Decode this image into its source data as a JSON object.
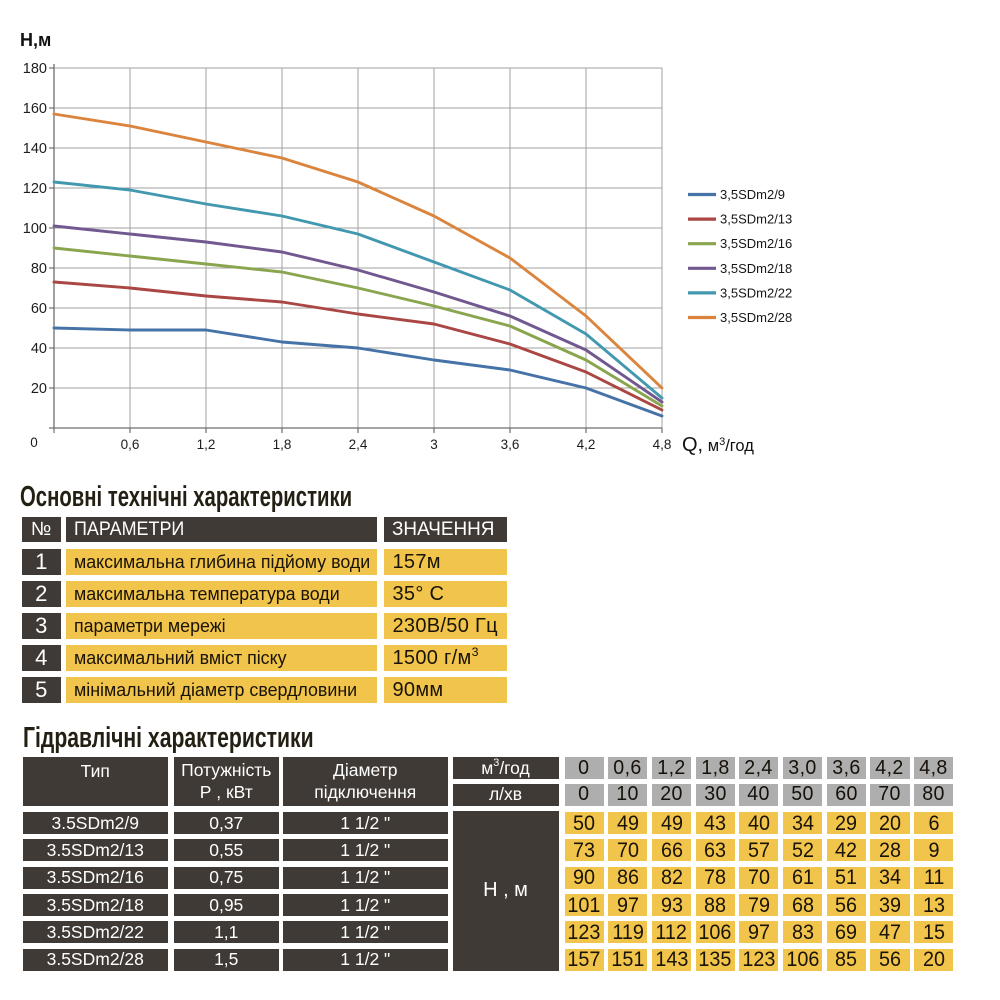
{
  "colors": {
    "dark_cell": "#3f3a35",
    "yellow_cell": "#f1c44b",
    "gray_cell": "#aeaeae",
    "grid_line": "#a0a0a0",
    "axis_line": "#6f6f6f",
    "text": "#1c1c1c"
  },
  "chart_data": {
    "type": "line",
    "ylabel": "Н,м",
    "xlabel": "Q, м3/год",
    "xlabel_parts": {
      "prefix": "Q,",
      "base": "  м",
      "sup": "3",
      "suffix": "/год"
    },
    "xlim": [
      0,
      4.8
    ],
    "ylim": [
      0,
      180
    ],
    "y_tick_step": 20,
    "grid": true,
    "legend_position": "right",
    "x": [
      0,
      0.6,
      1.2,
      1.8,
      2.4,
      3.0,
      3.6,
      4.2,
      4.8
    ],
    "x_tick_labels": [
      "0",
      "0,6",
      "1,2",
      "1,8",
      "2,4",
      "3",
      "3,6",
      "4,2",
      "4,8"
    ],
    "y_tick_labels": [
      "20",
      "40",
      "60",
      "80",
      "100",
      "120",
      "140",
      "160",
      "180"
    ],
    "series": [
      {
        "name": "3,5SDm2/9",
        "color": "#4572a7",
        "values": [
          50,
          49,
          49,
          43,
          40,
          34,
          29,
          20,
          6
        ]
      },
      {
        "name": "3,5SDm2/13",
        "color": "#aa4643",
        "values": [
          73,
          70,
          66,
          63,
          57,
          52,
          42,
          28,
          9
        ]
      },
      {
        "name": "3,5SDm2/16",
        "color": "#89a54e",
        "values": [
          90,
          86,
          82,
          78,
          70,
          61,
          51,
          34,
          11
        ]
      },
      {
        "name": "3,5SDm2/18",
        "color": "#71588f",
        "values": [
          101,
          97,
          93,
          88,
          79,
          68,
          56,
          39,
          13
        ]
      },
      {
        "name": "3,5SDm2/22",
        "color": "#4198af",
        "values": [
          123,
          119,
          112,
          106,
          97,
          83,
          69,
          47,
          15
        ]
      },
      {
        "name": "3,5SDm2/28",
        "color": "#db843d",
        "values": [
          157,
          151,
          143,
          135,
          123,
          106,
          85,
          56,
          20
        ]
      }
    ]
  },
  "tech_table": {
    "title": "Основні технічні характеристики",
    "headers": {
      "num": "№",
      "param": "ПАРАМЕТРИ",
      "value": "ЗНАЧЕННЯ"
    },
    "rows": [
      {
        "num": "1",
        "param": "максимальна глибина підйому води",
        "value": "157м"
      },
      {
        "num": "2",
        "param": "максимальна температура води",
        "value": "35° С"
      },
      {
        "num": "3",
        "param": "параметри мережі",
        "value": "230В/50 Гц"
      },
      {
        "num": "4",
        "param": "максимальний вміст піску",
        "value": "1500 г/м",
        "value_sup": "3"
      },
      {
        "num": "5",
        "param": "мінімальний діаметр свердловини",
        "value": "90мм"
      }
    ]
  },
  "hydro_table": {
    "title": "Гідравлічні характеристики",
    "col_headers": {
      "type": "Тип",
      "power_line1": "Потужність",
      "power_line2": "Р , кВт",
      "diameter_line1": "Діаметр",
      "diameter_line2": "підключення",
      "flow_unit1_base": "м",
      "flow_unit1_sup": "3",
      "flow_unit1_suffix": "/год",
      "flow_unit2": "л/хв",
      "head_label": "Н , м"
    },
    "flow_m3h": [
      "0",
      "0,6",
      "1,2",
      "1,8",
      "2,4",
      "3,0",
      "3,6",
      "4,2",
      "4,8"
    ],
    "flow_lmin": [
      "0",
      "10",
      "20",
      "30",
      "40",
      "50",
      "60",
      "70",
      "80"
    ],
    "rows": [
      {
        "type": "3.5SDm2/9",
        "power": "0,37",
        "diameter": "1 1/2 \"",
        "head": [
          "50",
          "49",
          "49",
          "43",
          "40",
          "34",
          "29",
          "20",
          "6"
        ]
      },
      {
        "type": "3.5SDm2/13",
        "power": "0,55",
        "diameter": "1 1/2 \"",
        "head": [
          "73",
          "70",
          "66",
          "63",
          "57",
          "52",
          "42",
          "28",
          "9"
        ]
      },
      {
        "type": "3.5SDm2/16",
        "power": "0,75",
        "diameter": "1 1/2 \"",
        "head": [
          "90",
          "86",
          "82",
          "78",
          "70",
          "61",
          "51",
          "34",
          "11"
        ]
      },
      {
        "type": "3.5SDm2/18",
        "power": "0,95",
        "diameter": "1 1/2 \"",
        "head": [
          "101",
          "97",
          "93",
          "88",
          "79",
          "68",
          "56",
          "39",
          "13"
        ]
      },
      {
        "type": "3.5SDm2/22",
        "power": "1,1",
        "diameter": "1 1/2 \"",
        "head": [
          "123",
          "119",
          "112",
          "106",
          "97",
          "83",
          "69",
          "47",
          "15"
        ]
      },
      {
        "type": "3.5SDm2/28",
        "power": "1,5",
        "diameter": "1 1/2 \"",
        "head": [
          "157",
          "151",
          "143",
          "135",
          "123",
          "106",
          "85",
          "56",
          "20"
        ]
      }
    ]
  }
}
